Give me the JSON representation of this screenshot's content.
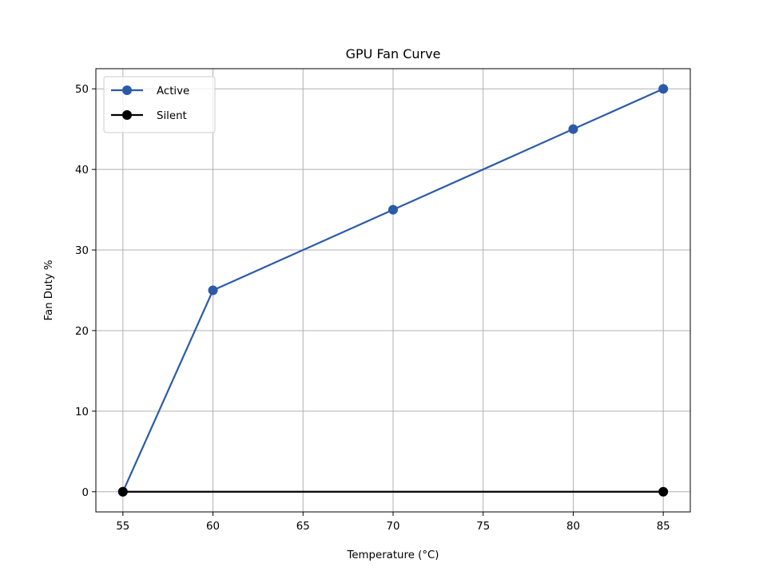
{
  "chart_data": {
    "type": "line",
    "title": "GPU Fan Curve",
    "xlabel": "Temperature (°C)",
    "ylabel": "Fan Duty %",
    "xlim": [
      53.5,
      86.5
    ],
    "ylim": [
      -2.5,
      52.5
    ],
    "xticks": [
      55,
      60,
      65,
      70,
      75,
      80,
      85
    ],
    "yticks": [
      0,
      10,
      20,
      30,
      40,
      50
    ],
    "grid": true,
    "legend_position": "upper-left",
    "series": [
      {
        "name": "Active",
        "color": "#2b5aa8",
        "marker": "circle",
        "x": [
          55,
          60,
          70,
          80,
          85
        ],
        "y": [
          0,
          25,
          35,
          45,
          50
        ]
      },
      {
        "name": "Silent",
        "color": "#000000",
        "marker": "circle",
        "x": [
          55,
          85
        ],
        "y": [
          0,
          0
        ]
      }
    ]
  }
}
